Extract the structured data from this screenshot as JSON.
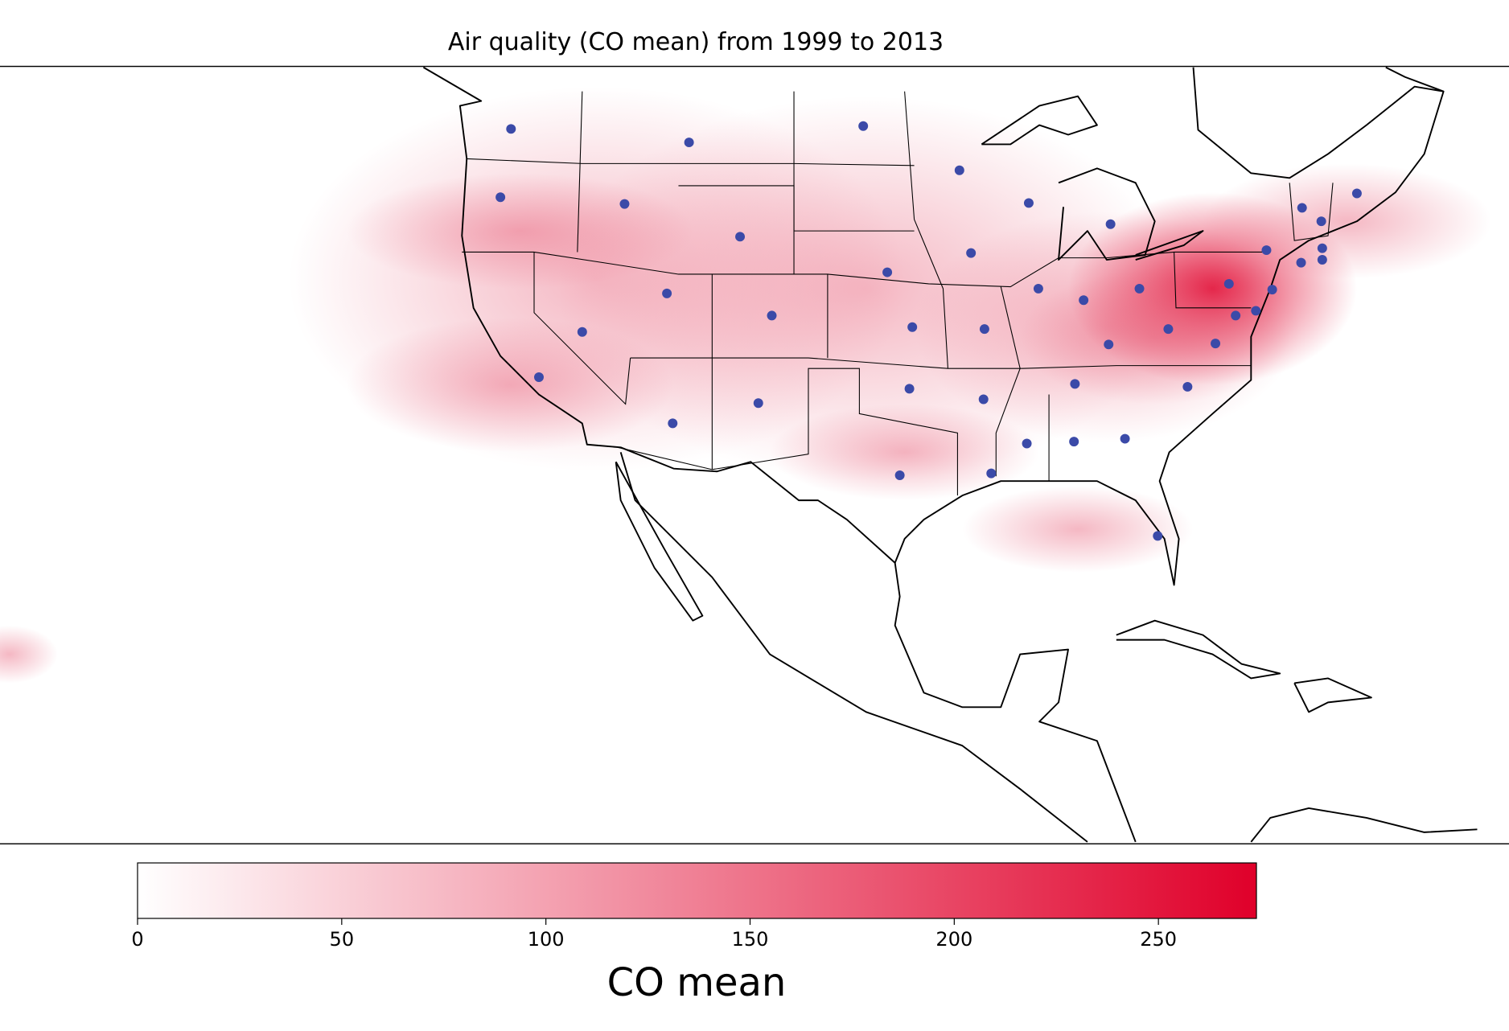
{
  "chart_data": {
    "type": "map",
    "title": "Air quality (CO mean) from 1999 to 2013",
    "colorbar": {
      "label": "CO mean",
      "lim": [
        0,
        274
      ],
      "ticks": [
        0,
        50,
        100,
        150,
        200,
        250
      ],
      "colors": [
        "#ffffff",
        "#e0002a"
      ]
    }
  }
}
